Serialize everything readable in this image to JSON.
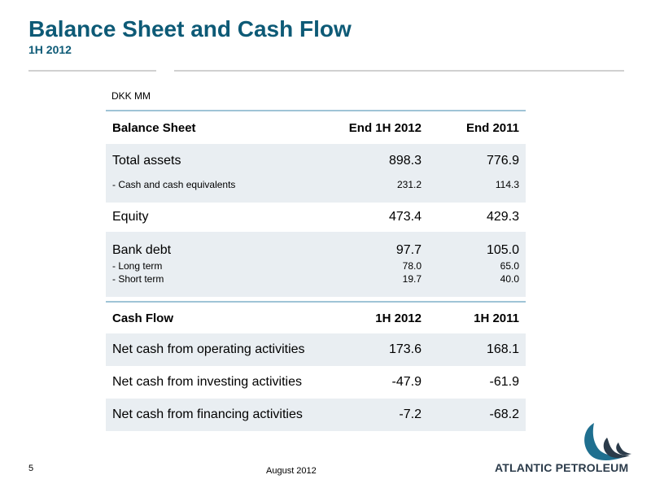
{
  "header": {
    "title": "Balance Sheet and Cash Flow",
    "subtitle": "1H 2012"
  },
  "unit": "DKK MM",
  "balance_sheet": {
    "headers": {
      "label": "Balance Sheet",
      "col1": "End 1H 2012",
      "col2": "End 2011"
    },
    "rows": [
      {
        "label": "Total assets",
        "v1": "898.3",
        "v2": "776.9"
      },
      {
        "label": "- Cash and cash equivalents",
        "v1": "231.2",
        "v2": "114.3"
      },
      {
        "label": "Equity",
        "v1": "473.4",
        "v2": "429.3"
      },
      {
        "label": "Bank debt",
        "v1": "97.7",
        "v2": "105.0"
      },
      {
        "label": "- Long term",
        "v1": "78.0",
        "v2": "65.0"
      },
      {
        "label": "- Short term",
        "v1": "19.7",
        "v2": "40.0"
      }
    ]
  },
  "cash_flow": {
    "headers": {
      "label": "Cash Flow",
      "col1": "1H 2012",
      "col2": "1H 2011"
    },
    "rows": [
      {
        "label": "Net cash from operating activities",
        "v1": "173.6",
        "v2": "168.1"
      },
      {
        "label": "Net cash from investing activities",
        "v1": "-47.9",
        "v2": "-61.9"
      },
      {
        "label": "Net cash from financing activities",
        "v1": "-7.2",
        "v2": "-68.2"
      }
    ]
  },
  "footer": {
    "page_number": "5",
    "date": "August 2012",
    "logo_text": "ATLANTIC PETROLEUM",
    "logo_icon": "wave-swirl-logo-icon",
    "title_color": "#0d5a76",
    "shade_color": "#e9eef2"
  }
}
